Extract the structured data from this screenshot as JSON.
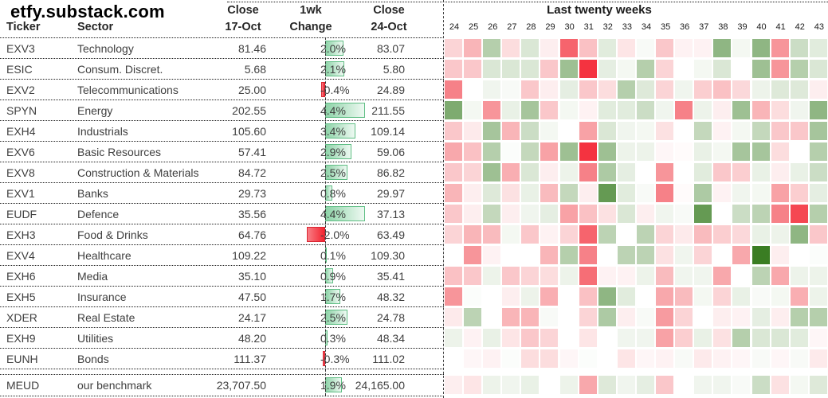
{
  "title": "etfy.substack.com",
  "table_headers": {
    "ticker": "Ticker",
    "sector": "Sector",
    "close1_line1": "Close",
    "close1_line2": "17-Oct",
    "change_line1": "1wk",
    "change_line2": "Change",
    "close2_line1": "Close",
    "close2_line2": "24-Oct"
  },
  "heatmap_header": {
    "title": "Last twenty weeks",
    "weeks": [
      24,
      25,
      26,
      27,
      28,
      29,
      30,
      31,
      32,
      33,
      34,
      35,
      36,
      37,
      38,
      39,
      40,
      41,
      42,
      43
    ]
  },
  "colors": {
    "strong_red": "#f43340",
    "mid_red": "#f7959a",
    "light_red": "#fbd4d6",
    "neutral": "#ffffff",
    "light_green": "#dae7d5",
    "mid_green": "#8fb683",
    "strong_green": "#3a7d23",
    "bar_pos_border": "#5fbe84",
    "bar_neg_border": "#d92632"
  },
  "chart_data": {
    "type": "heatmap",
    "title": "Last twenty weeks",
    "columns": [
      24,
      25,
      26,
      27,
      28,
      29,
      30,
      31,
      32,
      33,
      34,
      35,
      36,
      37,
      38,
      39,
      40,
      41,
      42,
      43
    ],
    "value_unit": "weekly % change (estimated from cell color)",
    "color_scale": [
      [
        -3,
        "#f43340"
      ],
      [
        -2,
        "#f7959a"
      ],
      [
        -1,
        "#fbd4d6"
      ],
      [
        0,
        "#ffffff"
      ],
      [
        1,
        "#dae7d5"
      ],
      [
        2,
        "#8fb683"
      ],
      [
        3,
        "#3a7d23"
      ]
    ],
    "rows": [
      {
        "ticker": "EXV3",
        "sector": "Technology",
        "close_17_oct": "81.46",
        "change_1wk_pct": 2.0,
        "close_24_oct": "83.07",
        "weekly": [
          -1.0,
          -1.5,
          1.5,
          -0.8,
          1.0,
          -0.4,
          -2.5,
          -1.3,
          0.8,
          -0.6,
          0.2,
          -1.2,
          -0.3,
          -0.3,
          2.0,
          0.3,
          2.0,
          -2.0,
          1.2,
          0.8
        ]
      },
      {
        "ticker": "ESIC",
        "sector": "Consum. Discret.",
        "close_17_oct": "5.68",
        "change_1wk_pct": 2.1,
        "close_24_oct": "5.80",
        "weekly": [
          -1.2,
          -1.2,
          1.0,
          1.0,
          1.0,
          -1.2,
          1.8,
          -3.0,
          0.7,
          0.3,
          1.5,
          -1.0,
          0.0,
          0.3,
          1.0,
          0.0,
          1.8,
          -2.0,
          1.5,
          1.0
        ]
      },
      {
        "ticker": "EXV2",
        "sector": "Telecommunications",
        "close_17_oct": "25.00",
        "change_1wk_pct": -0.4,
        "close_24_oct": "24.89",
        "weekly": [
          -2.2,
          0.0,
          0.4,
          0.2,
          -1.2,
          -0.4,
          0.7,
          -1.2,
          -0.8,
          1.5,
          0.9,
          -1.0,
          0.4,
          -1.1,
          -1.3,
          -0.9,
          0.5,
          0.9,
          0.9,
          -0.4
        ]
      },
      {
        "ticker": "SPYN",
        "sector": "Energy",
        "close_17_oct": "202.55",
        "change_1wk_pct": 4.4,
        "close_24_oct": "211.55",
        "weekly": [
          2.2,
          0.3,
          -2.0,
          0.6,
          1.7,
          -1.2,
          0.3,
          -0.3,
          0.8,
          0.8,
          1.2,
          0.4,
          -2.2,
          0.5,
          -0.4,
          1.8,
          -1.5,
          -0.8,
          0.4,
          2.0
        ]
      },
      {
        "ticker": "EXH4",
        "sector": "Industrials",
        "close_17_oct": "105.60",
        "change_1wk_pct": 3.4,
        "close_24_oct": "109.14",
        "weekly": [
          -1.2,
          -0.5,
          1.7,
          -1.5,
          1.2,
          0.3,
          0.0,
          -1.8,
          1.0,
          0.4,
          0.3,
          -0.7,
          0.0,
          1.3,
          -0.3,
          0.3,
          1.3,
          -1.2,
          -1.2,
          1.7
        ]
      },
      {
        "ticker": "EXV6",
        "sector": "Basic Resources",
        "close_17_oct": "57.41",
        "change_1wk_pct": 2.9,
        "close_24_oct": "59.06",
        "weekly": [
          -1.7,
          -1.3,
          1.5,
          0.1,
          1.3,
          -1.8,
          1.8,
          -3.0,
          1.8,
          0.5,
          0.5,
          -0.2,
          -0.1,
          0.6,
          0.3,
          1.7,
          1.7,
          -0.8,
          0.0,
          1.5
        ]
      },
      {
        "ticker": "EXV8",
        "sector": "Construction & Materials",
        "close_17_oct": "84.72",
        "change_1wk_pct": 2.5,
        "close_24_oct": "86.82",
        "weekly": [
          -1.2,
          -1.0,
          1.8,
          -1.6,
          1.0,
          -0.4,
          0.5,
          -2.2,
          1.6,
          0.7,
          0.0,
          -2.0,
          0.0,
          0.8,
          -1.2,
          -1.1,
          0.6,
          -0.4,
          0.6,
          1.2
        ]
      },
      {
        "ticker": "EXV1",
        "sector": "Banks",
        "close_17_oct": "29.73",
        "change_1wk_pct": 0.8,
        "close_24_oct": "29.97",
        "weekly": [
          -1.5,
          -0.4,
          0.9,
          -0.7,
          0.6,
          -1.4,
          1.3,
          -0.4,
          2.5,
          0.8,
          0.2,
          -2.2,
          -0.1,
          1.6,
          -0.3,
          0.4,
          0.3,
          -1.8,
          -1.1,
          0.7
        ]
      },
      {
        "ticker": "EUDF",
        "sector": "Defence",
        "close_17_oct": "35.56",
        "change_1wk_pct": 4.4,
        "close_24_oct": "37.13",
        "weekly": [
          -1.2,
          -0.4,
          1.3,
          -0.4,
          0.4,
          0.7,
          -1.8,
          -1.3,
          -0.7,
          1.0,
          -0.4,
          0.4,
          0.2,
          2.5,
          0.0,
          1.2,
          1.4,
          -2.2,
          -2.8,
          1.5
        ]
      },
      {
        "ticker": "EXH3",
        "sector": "Food & Drinks",
        "close_17_oct": "64.76",
        "change_1wk_pct": -2.0,
        "close_24_oct": "63.49",
        "weekly": [
          -1.0,
          -1.5,
          -1.4,
          0.3,
          -1.2,
          -0.3,
          -1.0,
          -2.5,
          1.4,
          0.0,
          1.4,
          -1.0,
          -0.5,
          -1.4,
          -1.1,
          -0.9,
          0.6,
          0.5,
          2.0,
          -1.2
        ]
      },
      {
        "ticker": "EXV4",
        "sector": "Healthcare",
        "close_17_oct": "109.22",
        "change_1wk_pct": 0.1,
        "close_24_oct": "109.30",
        "weekly": [
          0.0,
          -2.0,
          -0.3,
          0.0,
          0.0,
          -1.5,
          1.5,
          -2.2,
          0.0,
          1.4,
          1.4,
          -0.7,
          0.4,
          -1.0,
          0.0,
          -1.7,
          3.0,
          -0.4,
          0.0,
          0.1
        ]
      },
      {
        "ticker": "EXH6",
        "sector": "Media",
        "close_17_oct": "35.10",
        "change_1wk_pct": 0.9,
        "close_24_oct": "35.41",
        "weekly": [
          -1.3,
          -1.2,
          0.5,
          -1.2,
          -1.0,
          -0.8,
          0.5,
          -2.4,
          -0.3,
          -0.3,
          0.5,
          -1.4,
          0.4,
          0.4,
          -1.7,
          0.0,
          1.4,
          -1.7,
          0.5,
          0.5
        ]
      },
      {
        "ticker": "EXH5",
        "sector": "Insurance",
        "close_17_oct": "47.50",
        "change_1wk_pct": 1.7,
        "close_24_oct": "48.32",
        "weekly": [
          -2.0,
          0.1,
          0.0,
          -0.4,
          0.5,
          -1.6,
          0.0,
          -1.3,
          2.0,
          0.8,
          0.0,
          -1.7,
          -1.4,
          0.3,
          -1.0,
          0.6,
          0.2,
          0.3,
          -1.6,
          0.5
        ]
      },
      {
        "ticker": "XDER",
        "sector": "Real Estate",
        "close_17_oct": "24.17",
        "change_1wk_pct": 2.5,
        "close_24_oct": "24.78",
        "weekly": [
          -0.5,
          1.4,
          0.0,
          -1.5,
          -1.5,
          0.2,
          0.0,
          -1.0,
          1.6,
          -0.4,
          0.2,
          -1.9,
          -1.0,
          0.0,
          -0.4,
          -0.3,
          0.7,
          -0.4,
          1.5,
          1.5
        ]
      },
      {
        "ticker": "EXH9",
        "sector": "Utilities",
        "close_17_oct": "48.20",
        "change_1wk_pct": 0.3,
        "close_24_oct": "48.34",
        "weekly": [
          0.5,
          -0.3,
          0.6,
          -0.6,
          -1.2,
          -1.0,
          0.0,
          -0.6,
          0.0,
          0.4,
          0.4,
          -1.8,
          -1.1,
          0.6,
          -0.7,
          1.5,
          1.0,
          1.0,
          0.8,
          -0.2
        ]
      },
      {
        "ticker": "EUNH",
        "sector": "Bonds",
        "close_17_oct": "111.37",
        "change_1wk_pct": -0.3,
        "close_24_oct": "111.02",
        "weekly": [
          0.0,
          -0.2,
          -0.3,
          0.1,
          -0.8,
          -0.8,
          -0.2,
          0.1,
          0.0,
          -0.6,
          -0.2,
          -0.3,
          0.2,
          -0.5,
          -0.3,
          -0.2,
          0.2,
          -0.2,
          0.2,
          -0.5
        ]
      },
      {
        "ticker": "MEUD",
        "sector": "our benchmark",
        "close_17_oct": "23,707.50",
        "change_1wk_pct": 1.9,
        "close_24_oct": "24,165.00",
        "weekly": [
          -0.4,
          -0.6,
          0.5,
          0.4,
          0.6,
          0.0,
          0.5,
          -1.7,
          0.9,
          0.4,
          0.7,
          -1.2,
          0.0,
          0.4,
          0.4,
          0.2,
          1.2,
          -0.7,
          0.3,
          0.9
        ]
      }
    ]
  }
}
